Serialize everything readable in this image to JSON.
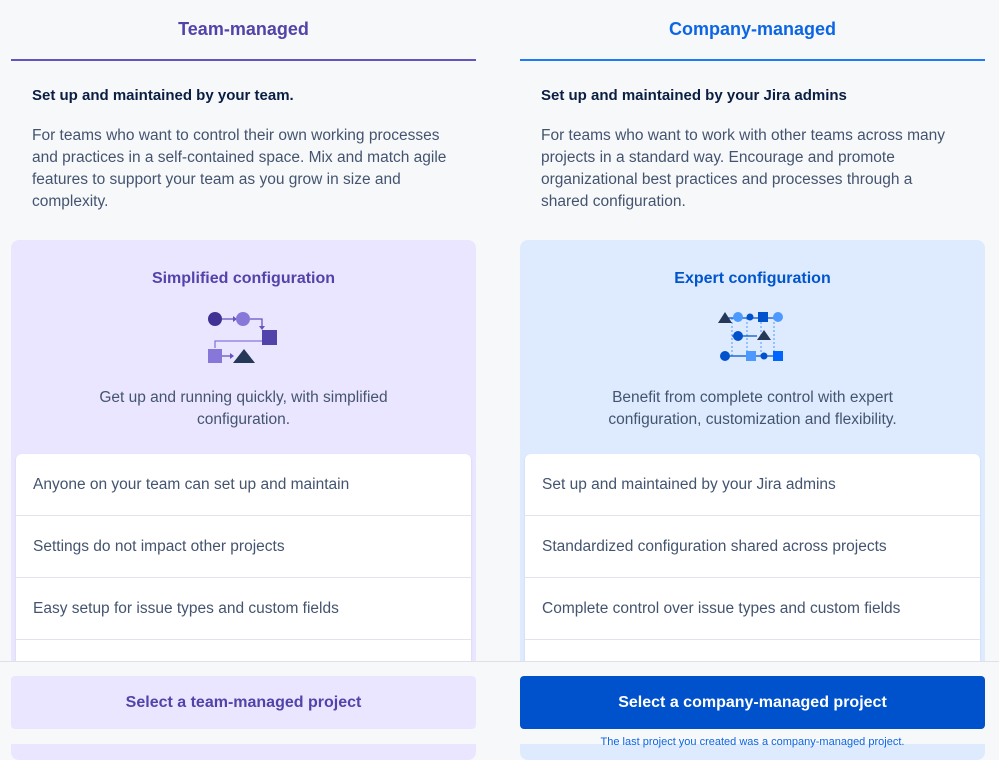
{
  "team": {
    "tab": "Team-managed",
    "subhead": "Set up and maintained by your team.",
    "description": "For teams who want to control their own working processes and practices in a self-contained space. Mix and match agile features to support your team as you grow in size and complexity.",
    "card_title": "Simplified configuration",
    "card_description": "Get up and running quickly, with simplified configuration.",
    "features": [
      "Anyone on your team can set up and maintain",
      "Settings do not impact other projects",
      "Easy setup for issue types and custom fields"
    ],
    "button": "Select a team-managed project",
    "colors": {
      "accent": "#5243aa",
      "card": "#eae6ff"
    }
  },
  "company": {
    "tab": "Company-managed",
    "subhead": "Set up and maintained by your Jira admins",
    "description": "For teams who want to work with other teams across many projects in a standard way. Encourage and promote organizational best practices and processes through a shared configuration.",
    "card_title": "Expert configuration",
    "card_description": "Benefit from complete control with expert configuration, customization and flexibility.",
    "features": [
      "Set up and maintained by your Jira admins",
      "Standardized configuration shared across projects",
      "Complete control over issue types and custom fields"
    ],
    "button": "Select a company-managed project",
    "note": "The last project you created was a company-managed project.",
    "colors": {
      "accent": "#0052cc",
      "card": "#deebff"
    }
  },
  "icons": {
    "team_illustration": "simplified-workflow-icon",
    "company_illustration": "expert-workflow-icon"
  }
}
